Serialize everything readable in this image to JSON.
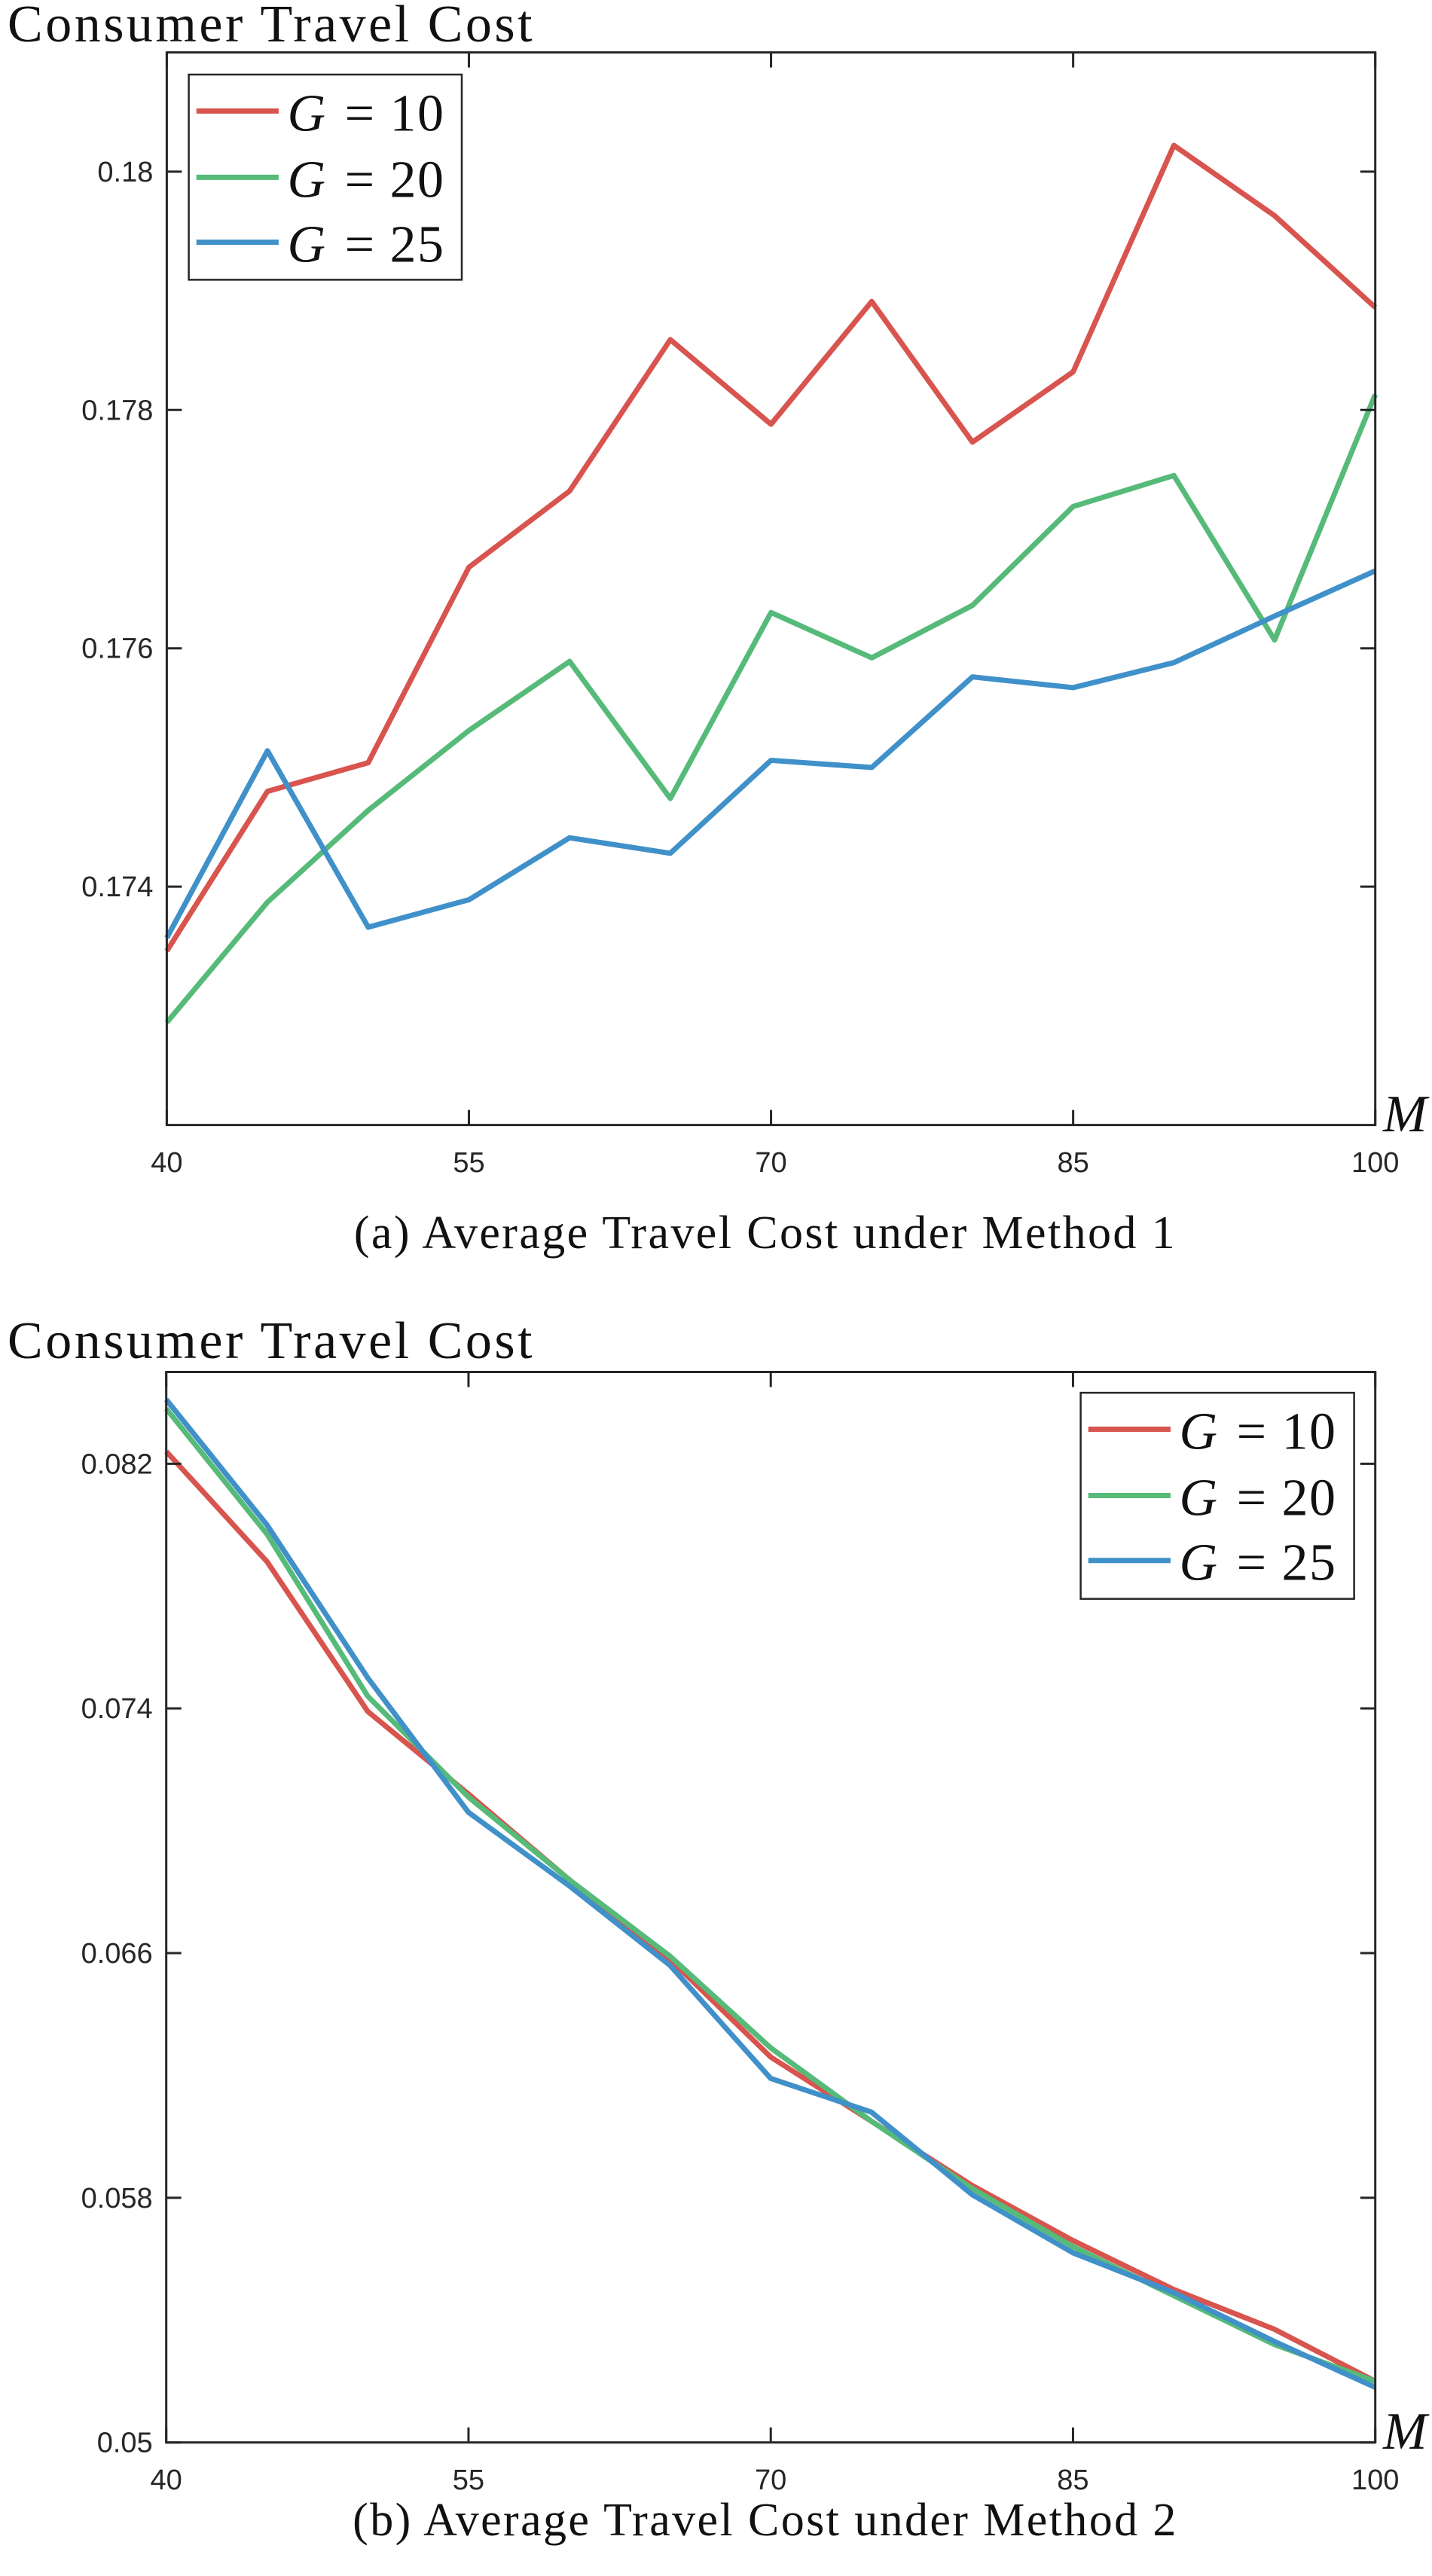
{
  "page": {
    "background_color": "#ffffff"
  },
  "axes_color": "#262626",
  "chart_data": [
    {
      "id": "a",
      "type": "line",
      "title": "Consumer Travel Cost",
      "caption": "(a) Average Travel Cost under Method 1",
      "xlabel": "M",
      "ylabel": "",
      "grid": false,
      "legend_position": "top-left",
      "xlim": [
        40,
        100
      ],
      "ylim": [
        0.172,
        0.181
      ],
      "xticks": [
        40,
        55,
        70,
        85,
        100
      ],
      "xtick_labels": [
        "40",
        "55",
        "70",
        "85",
        "100"
      ],
      "yticks": [
        0.174,
        0.176,
        0.178,
        0.18
      ],
      "ytick_labels": [
        "0.174",
        "0.176",
        "0.178",
        "0.18"
      ],
      "x": [
        40,
        45,
        50,
        55,
        60,
        65,
        70,
        75,
        80,
        85,
        90,
        95,
        100
      ],
      "series": [
        {
          "name_var": "G",
          "name_rest": "= 10",
          "name": "G = 10",
          "color": "#D8544E",
          "values": [
            0.17346,
            0.1748,
            0.17504,
            0.17668,
            0.17732,
            0.17859,
            0.17788,
            0.17891,
            0.17773,
            0.17832,
            0.18022,
            0.17963,
            0.17886
          ]
        },
        {
          "name_var": "G",
          "name_rest": "= 20",
          "name": "G = 20",
          "color": "#56BA79",
          "values": [
            0.17286,
            0.17387,
            0.17464,
            0.17531,
            0.17589,
            0.17474,
            0.1763,
            0.17592,
            0.17636,
            0.17719,
            0.17745,
            0.17607,
            0.17813
          ]
        },
        {
          "name_var": "G",
          "name_rest": "= 25",
          "name": "G = 25",
          "color": "#4090C9",
          "values": [
            0.17357,
            0.17514,
            0.17366,
            0.17389,
            0.17441,
            0.17428,
            0.17506,
            0.175,
            0.17576,
            0.17567,
            0.17588,
            0.17627,
            0.17665
          ]
        }
      ]
    },
    {
      "id": "b",
      "type": "line",
      "title": "Consumer Travel Cost",
      "caption": "(b) Average Travel Cost under Method 2",
      "xlabel": "M",
      "ylabel": "",
      "grid": false,
      "legend_position": "top-right",
      "xlim": [
        40,
        100
      ],
      "ylim": [
        0.05,
        0.085
      ],
      "xticks": [
        40,
        55,
        70,
        85,
        100
      ],
      "xtick_labels": [
        "40",
        "55",
        "70",
        "85",
        "100"
      ],
      "yticks": [
        0.05,
        0.058,
        0.066,
        0.074,
        0.082
      ],
      "ytick_labels": [
        "0.05",
        "0.058",
        "0.066",
        "0.074",
        "0.082"
      ],
      "x": [
        40,
        45,
        50,
        55,
        60,
        65,
        70,
        75,
        80,
        85,
        90,
        95,
        100
      ],
      "series": [
        {
          "name_var": "G",
          "name_rest": "= 10",
          "name": "G = 10",
          "color": "#D8544E",
          "values": [
            0.0824,
            0.0788,
            0.0739,
            0.0712,
            0.0684,
            0.0658,
            0.0626,
            0.0605,
            0.0584,
            0.0566,
            0.055,
            0.0537,
            0.052
          ]
        },
        {
          "name_var": "G",
          "name_rest": "= 20",
          "name": "G = 20",
          "color": "#56BA79",
          "values": [
            0.0838,
            0.0797,
            0.0744,
            0.0711,
            0.0684,
            0.0659,
            0.0629,
            0.0605,
            0.0583,
            0.0564,
            0.0548,
            0.0532,
            0.052
          ]
        },
        {
          "name_var": "G",
          "name_rest": "= 25",
          "name": "G = 25",
          "color": "#4090C9",
          "values": [
            0.0841,
            0.08,
            0.075,
            0.0706,
            0.0682,
            0.0656,
            0.0619,
            0.0608,
            0.0581,
            0.0562,
            0.0549,
            0.0533,
            0.0518
          ]
        }
      ]
    }
  ]
}
